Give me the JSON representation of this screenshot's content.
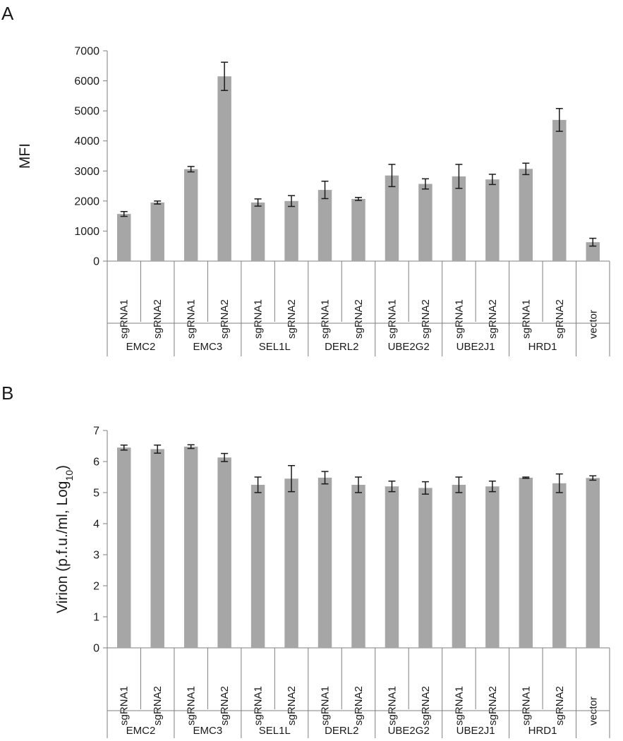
{
  "colors": {
    "bar": "#a6a6a6",
    "axis": "#7f7f7f",
    "error": "#1a1a1a"
  },
  "chart_data": [
    {
      "panel": "A",
      "type": "bar",
      "ylabel": "MFI",
      "ylim": [
        0,
        7000
      ],
      "yticks": [
        0,
        1000,
        2000,
        3000,
        4000,
        5000,
        6000,
        7000
      ],
      "grid": false,
      "categories": [
        "sgRNA1",
        "sgRNA2",
        "sgRNA1",
        "sgRNA2",
        "sgRNA1",
        "sgRNA2",
        "sgRNA1",
        "sgRNA2",
        "sgRNA1",
        "sgRNA2",
        "sgRNA1",
        "sgRNA2",
        "sgRNA1",
        "sgRNA2",
        "vector"
      ],
      "groups": [
        {
          "label": "EMC2",
          "span": 2
        },
        {
          "label": "EMC3",
          "span": 2
        },
        {
          "label": "SEL1L",
          "span": 2
        },
        {
          "label": "DERL2",
          "span": 2
        },
        {
          "label": "UBE2G2",
          "span": 2
        },
        {
          "label": "UBE2J1",
          "span": 2
        },
        {
          "label": "HRD1",
          "span": 2
        },
        {
          "label": "",
          "span": 1
        }
      ],
      "values": [
        1570,
        1950,
        3060,
        6150,
        1950,
        2000,
        2370,
        2070,
        2850,
        2570,
        2820,
        2720,
        3070,
        4700,
        630
      ],
      "errors": [
        80,
        50,
        90,
        470,
        120,
        180,
        290,
        50,
        370,
        170,
        400,
        170,
        190,
        380,
        130
      ]
    },
    {
      "panel": "B",
      "type": "bar",
      "ylabel": "Virion  (p.f.u./ml, Log",
      "ylabel_sub": "10",
      "ylabel_end": ")",
      "ylim": [
        0,
        7
      ],
      "yticks": [
        0,
        1,
        2,
        3,
        4,
        5,
        6,
        7
      ],
      "grid": false,
      "categories": [
        "sgRNA1",
        "sgRNA2",
        "sgRNA1",
        "sgRNA2",
        "sgRNA1",
        "sgRNA2",
        "sgRNA1",
        "sgRNA2",
        "sgRNA1",
        "sgRNA2",
        "sgRNA1",
        "sgRNA2",
        "sgRNA1",
        "sgRNA2",
        "vector"
      ],
      "groups": [
        {
          "label": "EMC2",
          "span": 2
        },
        {
          "label": "EMC3",
          "span": 2
        },
        {
          "label": "SEL1L",
          "span": 2
        },
        {
          "label": "DERL2",
          "span": 2
        },
        {
          "label": "UBE2G2",
          "span": 2
        },
        {
          "label": "UBE2J1",
          "span": 2
        },
        {
          "label": "HRD1",
          "span": 2
        },
        {
          "label": "",
          "span": 1
        }
      ],
      "values": [
        6.45,
        6.4,
        6.48,
        6.13,
        5.25,
        5.45,
        5.48,
        5.25,
        5.2,
        5.15,
        5.25,
        5.2,
        5.48,
        5.3,
        5.47
      ],
      "errors": [
        0.08,
        0.13,
        0.06,
        0.13,
        0.25,
        0.42,
        0.2,
        0.25,
        0.17,
        0.2,
        0.25,
        0.17,
        0.02,
        0.3,
        0.07
      ]
    }
  ]
}
